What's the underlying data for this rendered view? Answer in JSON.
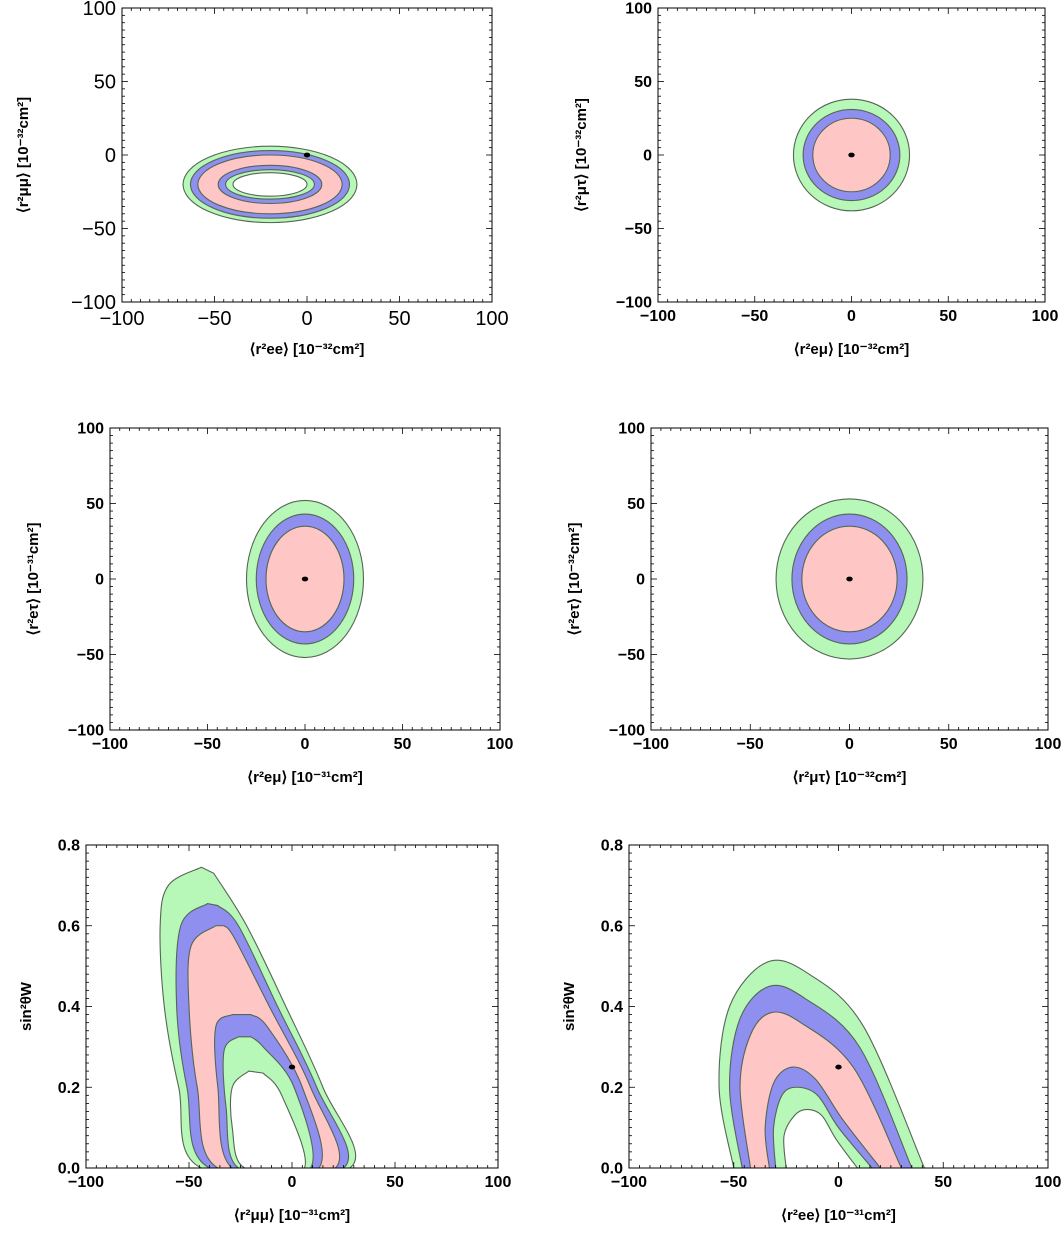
{
  "colors": {
    "green": "#b7f7b7",
    "blue": "#8f8fef",
    "pink": "#ffc6c6",
    "outline": "#556655",
    "best_fit": "#000000"
  },
  "chart_data": [
    {
      "type": "contour",
      "xlabel": "⟨r²ee⟩ [10⁻³²cm²]",
      "ylabel": "⟨r²μμ⟩ [10⁻³²cm²]",
      "xlim": [
        -100,
        100
      ],
      "ylim": [
        -100,
        100
      ],
      "xticks": [
        "−100",
        "−50",
        "0",
        "50",
        "100"
      ],
      "yticks": [
        "−100",
        "−50",
        "0",
        "50",
        "100"
      ],
      "best_fit": [
        0,
        0
      ],
      "regions": [
        {
          "color": "green",
          "shape": "ellipse",
          "center": [
            -20,
            -20
          ],
          "radii": [
            47,
            26
          ]
        },
        {
          "color": "blue",
          "shape": "ellipse",
          "center": [
            -20,
            -20
          ],
          "radii": [
            43,
            23
          ]
        },
        {
          "color": "pink",
          "shape": "ellipse",
          "center": [
            -20,
            -20
          ],
          "radii": [
            39,
            20
          ]
        },
        {
          "color": "blue",
          "shape": "ellipse",
          "center": [
            -20,
            -20
          ],
          "radii": [
            28,
            13
          ]
        },
        {
          "color": "green",
          "shape": "ellipse",
          "center": [
            -20,
            -20
          ],
          "radii": [
            24,
            10
          ]
        },
        {
          "color": "white",
          "shape": "ellipse",
          "center": [
            -20,
            -20
          ],
          "radii": [
            20,
            8
          ]
        }
      ]
    },
    {
      "type": "contour",
      "xlabel": "⟨r²eμ⟩ [10⁻³²cm²]",
      "ylabel": "⟨r²μτ⟩ [10⁻³²cm²]",
      "xlim": [
        -100,
        100
      ],
      "ylim": [
        -100,
        100
      ],
      "xticks": [
        "−100",
        "−50",
        "0",
        "50",
        "100"
      ],
      "yticks": [
        "−100",
        "−50",
        "0",
        "50",
        "100"
      ],
      "best_fit": [
        0,
        0
      ],
      "regions": [
        {
          "color": "green",
          "shape": "ellipse",
          "center": [
            0,
            0
          ],
          "radii": [
            30,
            38
          ]
        },
        {
          "color": "blue",
          "shape": "ellipse",
          "center": [
            0,
            0
          ],
          "radii": [
            25,
            31
          ]
        },
        {
          "color": "pink",
          "shape": "ellipse",
          "center": [
            0,
            0
          ],
          "radii": [
            20,
            25
          ]
        }
      ]
    },
    {
      "type": "contour",
      "xlabel": "⟨r²eμ⟩ [10⁻³¹cm²]",
      "ylabel": "⟨r²eτ⟩ [10⁻³¹cm²]",
      "xlim": [
        -100,
        100
      ],
      "ylim": [
        -100,
        100
      ],
      "xticks": [
        "−100",
        "−50",
        "0",
        "50",
        "100"
      ],
      "yticks": [
        "−100",
        "−50",
        "0",
        "50",
        "100"
      ],
      "best_fit": [
        0,
        0
      ],
      "regions": [
        {
          "color": "green",
          "shape": "ellipse",
          "center": [
            0,
            0
          ],
          "radii": [
            30,
            52
          ]
        },
        {
          "color": "blue",
          "shape": "ellipse",
          "center": [
            0,
            0
          ],
          "radii": [
            25,
            43
          ]
        },
        {
          "color": "pink",
          "shape": "ellipse",
          "center": [
            0,
            0
          ],
          "radii": [
            20,
            35
          ]
        }
      ]
    },
    {
      "type": "contour",
      "xlabel": "⟨r²μτ⟩ [10⁻³²cm²]",
      "ylabel": "⟨r²eτ⟩ [10⁻³²cm²]",
      "xlim": [
        -100,
        100
      ],
      "ylim": [
        -100,
        100
      ],
      "xticks": [
        "−100",
        "−50",
        "0",
        "50",
        "100"
      ],
      "yticks": [
        "−100",
        "−50",
        "0",
        "50",
        "100"
      ],
      "best_fit": [
        0,
        0
      ],
      "regions": [
        {
          "color": "green",
          "shape": "ellipse",
          "center": [
            0,
            0
          ],
          "radii": [
            37,
            53
          ]
        },
        {
          "color": "blue",
          "shape": "ellipse",
          "center": [
            0,
            0
          ],
          "radii": [
            29,
            43
          ]
        },
        {
          "color": "pink",
          "shape": "ellipse",
          "center": [
            0,
            0
          ],
          "radii": [
            24,
            35
          ]
        }
      ]
    },
    {
      "type": "contour",
      "xlabel": "⟨r²μμ⟩ [10⁻³¹cm²]",
      "ylabel": "sin²θW",
      "xlim": [
        -100,
        100
      ],
      "ylim": [
        0,
        0.8
      ],
      "xticks": [
        "−100",
        "−50",
        "0",
        "50",
        "100"
      ],
      "yticks": [
        "0.0",
        "0.2",
        "0.4",
        "0.6",
        "0.8"
      ],
      "best_fit": [
        0,
        0.25
      ],
      "regions": [
        {
          "color": "green",
          "shape": "band",
          "points": [
            [
              -44,
              0.745
            ],
            [
              -60,
              0.7
            ],
            [
              -64,
              0.6
            ],
            [
              -62,
              0.4
            ],
            [
              -55,
              0.2
            ],
            [
              -44,
              0
            ],
            [
              28,
              0
            ],
            [
              15,
              0.2
            ],
            [
              -3,
              0.4
            ],
            [
              -22,
              0.6
            ],
            [
              -38,
              0.73
            ]
          ]
        },
        {
          "color": "blue",
          "shape": "band",
          "points": [
            [
              -41,
              0.655
            ],
            [
              -54,
              0.6
            ],
            [
              -56,
              0.4
            ],
            [
              -51,
              0.2
            ],
            [
              -40,
              0
            ],
            [
              25,
              0
            ],
            [
              12,
              0.2
            ],
            [
              -7,
              0.4
            ],
            [
              -26,
              0.6
            ],
            [
              -36,
              0.65
            ]
          ]
        },
        {
          "color": "pink",
          "shape": "band",
          "points": [
            [
              -37,
              0.6
            ],
            [
              -49,
              0.55
            ],
            [
              -50,
              0.4
            ],
            [
              -46,
              0.2
            ],
            [
              -36,
              0
            ],
            [
              21,
              0
            ],
            [
              9,
              0.2
            ],
            [
              -11,
              0.4
            ],
            [
              -28,
              0.57
            ],
            [
              -33,
              0.6
            ]
          ]
        },
        {
          "color": "blue",
          "shape": "band",
          "points": [
            [
              -29,
              0.38
            ],
            [
              -37,
              0.35
            ],
            [
              -36,
              0.2
            ],
            [
              -29,
              0
            ],
            [
              13,
              0
            ],
            [
              5,
              0.2
            ],
            [
              -12,
              0.35
            ],
            [
              -20,
              0.38
            ]
          ]
        },
        {
          "color": "green",
          "shape": "band",
          "points": [
            [
              -26,
              0.325
            ],
            [
              -33,
              0.29
            ],
            [
              -32,
              0.15
            ],
            [
              -26,
              0
            ],
            [
              9,
              0
            ],
            [
              1,
              0.2
            ],
            [
              -14,
              0.3
            ],
            [
              -20,
              0.325
            ]
          ]
        },
        {
          "color": "white",
          "shape": "band",
          "points": [
            [
              -21,
              0.24
            ],
            [
              -29,
              0.2
            ],
            [
              -29,
              0.1
            ],
            [
              -23,
              0
            ],
            [
              6,
              0
            ],
            [
              -5,
              0.18
            ],
            [
              -14,
              0.235
            ]
          ]
        }
      ]
    },
    {
      "type": "contour",
      "xlabel": "⟨r²ee⟩ [10⁻³¹cm²]",
      "ylabel": "sin²θW",
      "xlim": [
        -100,
        100
      ],
      "ylim": [
        0,
        0.8
      ],
      "xticks": [
        "−100",
        "−50",
        "0",
        "50",
        "100"
      ],
      "yticks": [
        "0.0",
        "0.2",
        "0.4",
        "0.6",
        "0.8"
      ],
      "best_fit": [
        0,
        0.25
      ],
      "regions": [
        {
          "color": "green",
          "shape": "band",
          "points": [
            [
              -50,
              0
            ],
            [
              -57,
              0.2
            ],
            [
              -52,
              0.4
            ],
            [
              -34,
              0.51
            ],
            [
              -14,
              0.48
            ],
            [
              12,
              0.35
            ],
            [
              41,
              0
            ]
          ]
        },
        {
          "color": "blue",
          "shape": "band",
          "points": [
            [
              -46,
              0
            ],
            [
              -52,
              0.2
            ],
            [
              -47,
              0.37
            ],
            [
              -33,
              0.45
            ],
            [
              -16,
              0.42
            ],
            [
              10,
              0.3
            ],
            [
              35,
              0
            ]
          ]
        },
        {
          "color": "pink",
          "shape": "band",
          "points": [
            [
              -42,
              0
            ],
            [
              -47,
              0.2
            ],
            [
              -42,
              0.33
            ],
            [
              -32,
              0.385
            ],
            [
              -18,
              0.36
            ],
            [
              7,
              0.25
            ],
            [
              30,
              0
            ]
          ]
        },
        {
          "color": "blue",
          "shape": "band",
          "points": [
            [
              -33,
              0
            ],
            [
              -35,
              0.1
            ],
            [
              -31,
              0.21
            ],
            [
              -22,
              0.25
            ],
            [
              -11,
              0.22
            ],
            [
              2,
              0.12
            ],
            [
              20,
              0
            ]
          ]
        },
        {
          "color": "green",
          "shape": "band",
          "points": [
            [
              -30,
              0
            ],
            [
              -31,
              0.1
            ],
            [
              -27,
              0.18
            ],
            [
              -20,
              0.2
            ],
            [
              -10,
              0.18
            ],
            [
              0,
              0.1
            ],
            [
              16,
              0
            ]
          ]
        },
        {
          "color": "white",
          "shape": "band",
          "points": [
            [
              -25,
              0
            ],
            [
              -26,
              0.08
            ],
            [
              -21,
              0.13
            ],
            [
              -15,
              0.145
            ],
            [
              -8,
              0.13
            ],
            [
              -1,
              0.07
            ],
            [
              9,
              0
            ]
          ]
        }
      ]
    }
  ]
}
